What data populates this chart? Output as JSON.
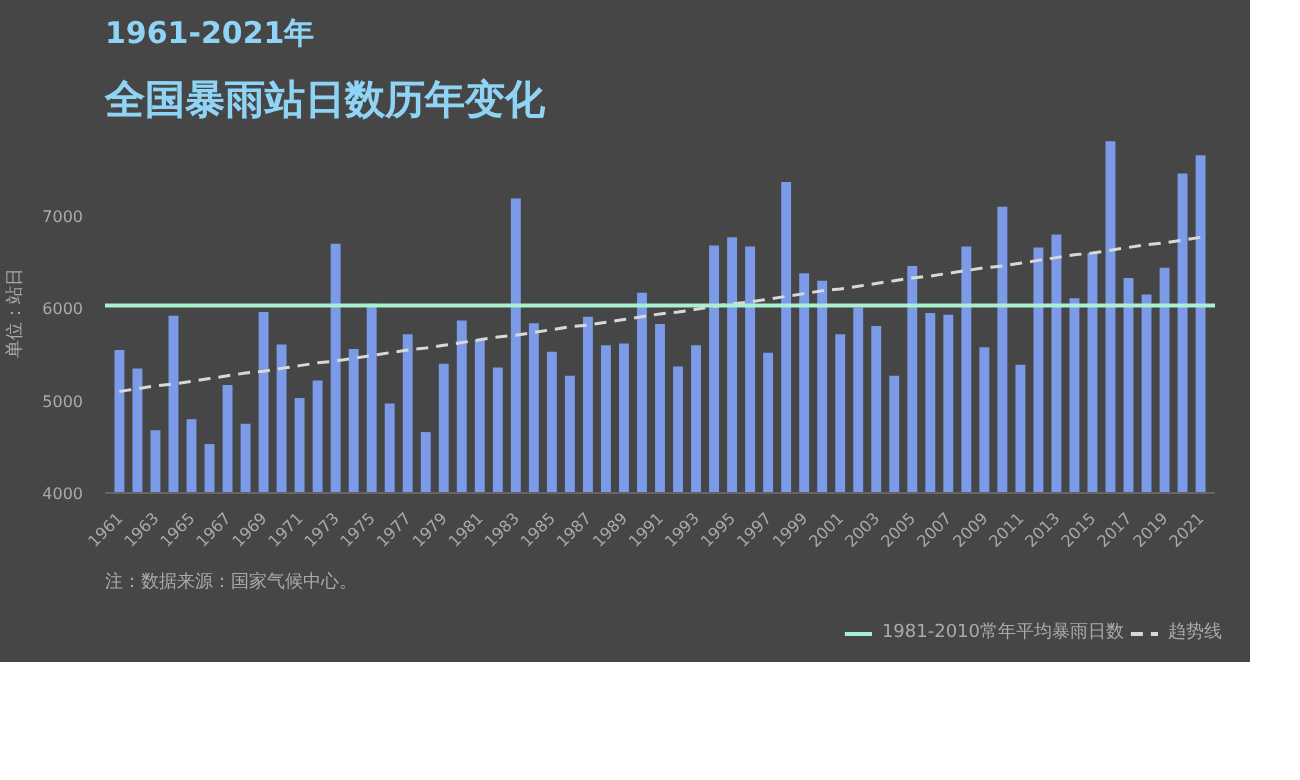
{
  "chart_data": {
    "type": "bar",
    "title": "1961-2021年",
    "subtitle": "全国暴雨站日数历年变化",
    "ylabel": "单位：站日",
    "categories": [
      "1961",
      null,
      "1963",
      null,
      "1965",
      null,
      "1967",
      null,
      "1969",
      null,
      "1971",
      null,
      "1973",
      null,
      "1975",
      null,
      "1977",
      null,
      "1979",
      null,
      "1981",
      null,
      "1983",
      null,
      "1985",
      null,
      "1987",
      null,
      "1989",
      null,
      "1991",
      null,
      "1993",
      null,
      "1995",
      null,
      "1997",
      null,
      "1999",
      null,
      "2001",
      null,
      "2003",
      null,
      "2005",
      null,
      "2007",
      null,
      "2009",
      null,
      "2011",
      null,
      "2013",
      null,
      "2015",
      null,
      "2017",
      null,
      "2019",
      null,
      "2021"
    ],
    "series": [
      {
        "color": "#7b9be8",
        "values": [
          5550,
          5350,
          4680,
          5920,
          4800,
          4530,
          5170,
          4750,
          5960,
          5610,
          5030,
          5220,
          6700,
          5560,
          6050,
          4970,
          5720,
          4660,
          5400,
          5870,
          5660,
          5360,
          7190,
          5840,
          5530,
          5270,
          5910,
          5600,
          5620,
          6170,
          5830,
          5370,
          5600,
          6680,
          6770,
          6670,
          5520,
          7370,
          6380,
          6300,
          5720,
          6010,
          5810,
          5270,
          6460,
          5950,
          5930,
          6670,
          5580,
          7100,
          5390,
          6660,
          6800,
          6110,
          6600,
          7810,
          6330,
          6150,
          6440,
          7460,
          7660
        ]
      },
      {
        "type": "line",
        "name": "趋势线",
        "color": "#d8d8d8",
        "line_style": "dashed",
        "values": [
          5100,
          5130,
          5160,
          5180,
          5210,
          5240,
          5270,
          5300,
          5320,
          5350,
          5380,
          5410,
          5430,
          5460,
          5490,
          5520,
          5550,
          5570,
          5600,
          5630,
          5660,
          5690,
          5710,
          5740,
          5770,
          5800,
          5820,
          5850,
          5880,
          5910,
          5940,
          5960,
          5990,
          6020,
          6050,
          6070,
          6100,
          6130,
          6160,
          6190,
          6210,
          6240,
          6270,
          6300,
          6330,
          6350,
          6380,
          6410,
          6440,
          6460,
          6490,
          6520,
          6550,
          6580,
          6600,
          6630,
          6660,
          6690,
          6710,
          6740,
          6770
        ]
      }
    ],
    "ref_lines": [
      {
        "axis": "y",
        "value": 6030,
        "label": "1981-2010常年平均暴雨日数",
        "color": "#a8f0d0"
      }
    ],
    "ylim": [
      4000,
      7900
    ],
    "yticks": [
      4000,
      5000,
      6000,
      7000
    ],
    "legend": "bottom right",
    "grid": false,
    "annotations": [
      "注：数据来源：国家气候中心。"
    ]
  }
}
